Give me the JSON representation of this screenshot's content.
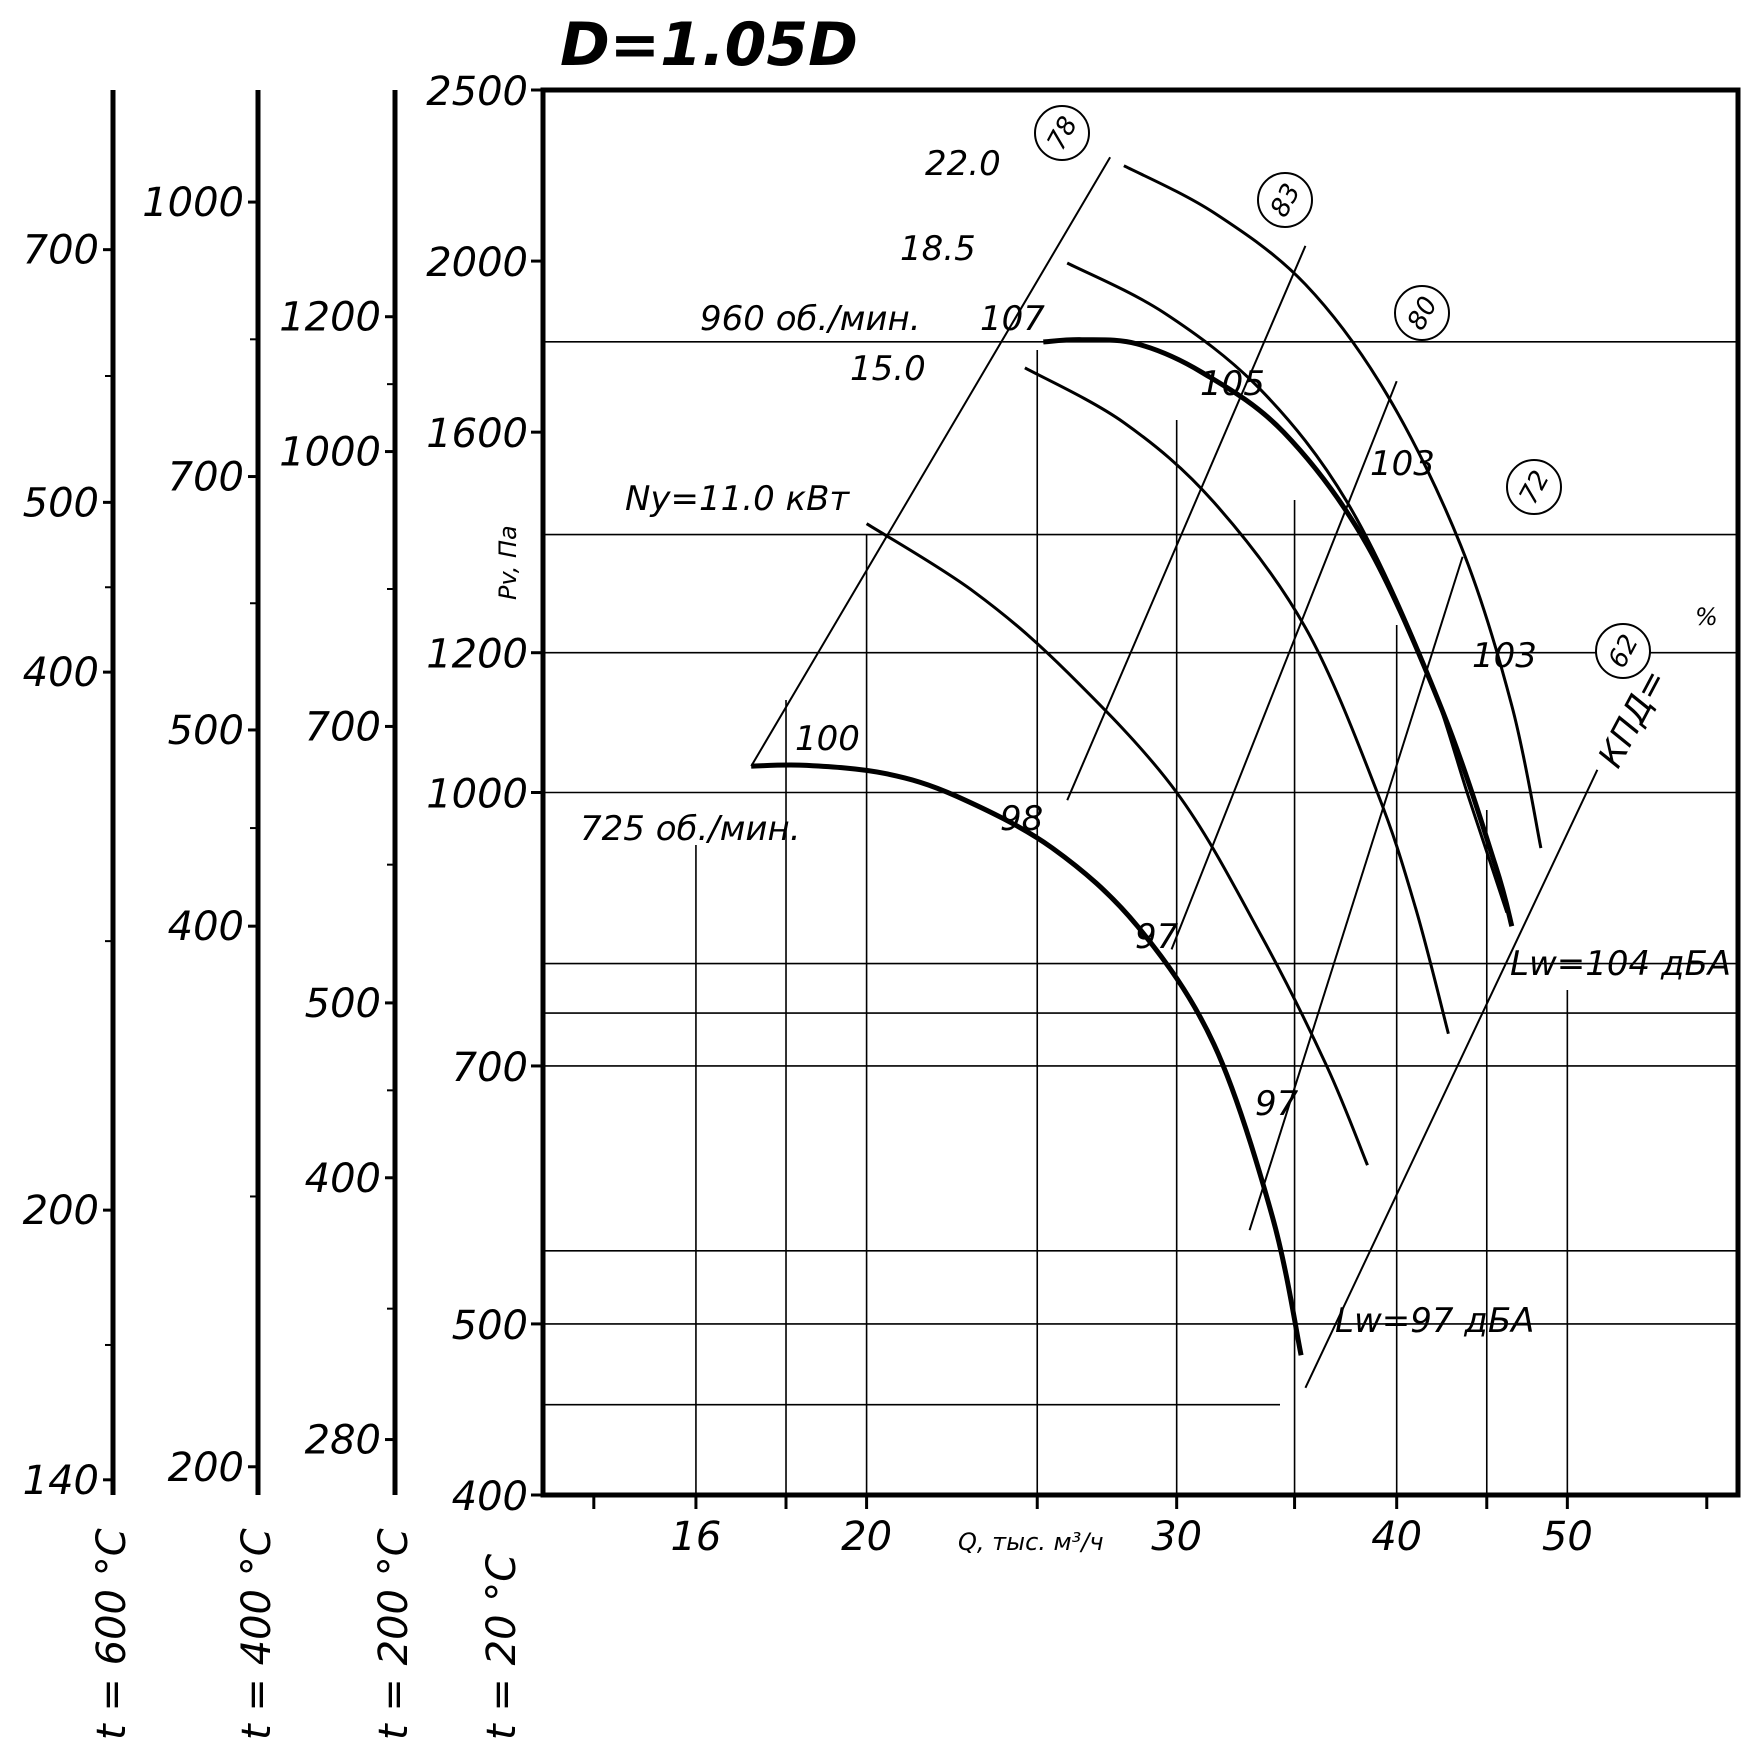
{
  "chart_data": {
    "type": "line",
    "title": "D=1.05D",
    "xlabel": "Q, тыс. м³/ч",
    "ylabel": "Pv, Па",
    "x_scale": "log",
    "y_scale": "log",
    "xlim": [
      13.1,
      62.5
    ],
    "ylim": [
      400,
      2500
    ],
    "x_ticks": [
      16,
      20,
      30,
      40,
      50
    ],
    "x_ticks_unlabeled": [
      14,
      18,
      25,
      35,
      45,
      60
    ],
    "y_ticks": [
      400,
      500,
      700,
      1000,
      1200,
      1600,
      2000,
      2500
    ],
    "gridlines_y": [
      450,
      500,
      550,
      700,
      750,
      800,
      1000,
      1200,
      1400,
      1800
    ],
    "gridlines_x": [
      16,
      18,
      20,
      25,
      30,
      35,
      40,
      45,
      50
    ],
    "temperature_scales": [
      {
        "label": "t = 20 °C",
        "ticks": [
          400,
          500,
          700,
          1000,
          1200,
          1600,
          2000,
          2500
        ]
      },
      {
        "label": "t = 200 °C",
        "ticks": [
          280,
          400,
          500,
          700,
          1000,
          1200
        ],
        "ticks_at_pv": [
          430,
          605,
          760,
          1090,
          1560,
          1860
        ]
      },
      {
        "label": "t = 400 °C",
        "ticks": [
          200,
          400,
          500,
          700,
          1000
        ],
        "ticks_at_pv": [
          415,
          840,
          1085,
          1510,
          2160
        ]
      },
      {
        "label": "t = 600 °C",
        "ticks": [
          140,
          200,
          400,
          500,
          700
        ],
        "ticks_at_pv": [
          408,
          580,
          1170,
          1460,
          2030
        ]
      }
    ],
    "series": [
      {
        "name": "725 об./мин.",
        "role": "fan_curve",
        "x": [
          17.2,
          18.5,
          20.5,
          22.5,
          25.5,
          28.5,
          31.5,
          34.0,
          35.3
        ],
        "y": [
          1035,
          1036,
          1025,
          995,
          930,
          840,
          720,
          575,
          480
        ]
      },
      {
        "name": "960 об./мин.",
        "role": "fan_curve",
        "x": [
          25.2,
          26.5,
          28.5,
          31.0,
          34.5,
          38.5,
          42.5,
          45.5,
          46.5
        ],
        "y": [
          1800,
          1805,
          1795,
          1730,
          1600,
          1380,
          1110,
          910,
          840
        ]
      },
      {
        "name": "Ny=11.0 кВт",
        "role": "power",
        "x": [
          20.0,
          23.0,
          26.0,
          30.0,
          33.5,
          36.5,
          38.5
        ],
        "y": [
          1420,
          1300,
          1170,
          1000,
          830,
          700,
          615
        ]
      },
      {
        "name": "15.0",
        "role": "power",
        "x": [
          24.6,
          28.0,
          31.5,
          35.5,
          39.0,
          41.0,
          42.8
        ],
        "y": [
          1740,
          1620,
          1460,
          1240,
          1000,
          860,
          730
        ]
      },
      {
        "name": "18.5",
        "role": "power",
        "x": [
          26.0,
          29.5,
          33.5,
          37.5,
          41.5,
          44.0,
          46.2
        ],
        "y": [
          1995,
          1870,
          1690,
          1460,
          1180,
          990,
          855
        ]
      },
      {
        "name": "22.0",
        "role": "power",
        "x": [
          28.0,
          31.5,
          35.5,
          39.5,
          43.5,
          46.5,
          48.3
        ],
        "y": [
          2265,
          2130,
          1940,
          1680,
          1380,
          1120,
          930
        ]
      }
    ],
    "efficiency_lines": [
      {
        "label": "78",
        "x": [
          17.2,
          27.5
        ],
        "y": [
          1035,
          2290
        ]
      },
      {
        "label": "83",
        "x": [
          26.0,
          35.5
        ],
        "y": [
          990,
          2040
        ]
      },
      {
        "label": "80",
        "x": [
          29.8,
          40.0
        ],
        "y": [
          815,
          1710
        ]
      },
      {
        "label": "72",
        "x": [
          33.0,
          43.6
        ],
        "y": [
          565,
          1360
        ]
      },
      {
        "label": "62",
        "x": [
          35.5,
          52.0
        ],
        "y": [
          460,
          1030
        ]
      }
    ],
    "efficiency_unit": "%",
    "efficiency_prefix": "КПД=",
    "annotations": [
      "725 об./мин.",
      "960 об./мин.",
      "Ny=11.0 кВт",
      "15.0",
      "18.5",
      "22.0",
      "100",
      "98",
      "97",
      "97",
      "107",
      "105",
      "103",
      "103",
      "Lw=97 дБА",
      "Lw=104 дБА"
    ],
    "noise_labels": {
      "low": "Lw=97 дБА",
      "high": "Lw=104 дБА"
    },
    "grid": true,
    "legend": "none",
    "colors": {
      "line": "#000000",
      "background": "#ffffff"
    }
  }
}
